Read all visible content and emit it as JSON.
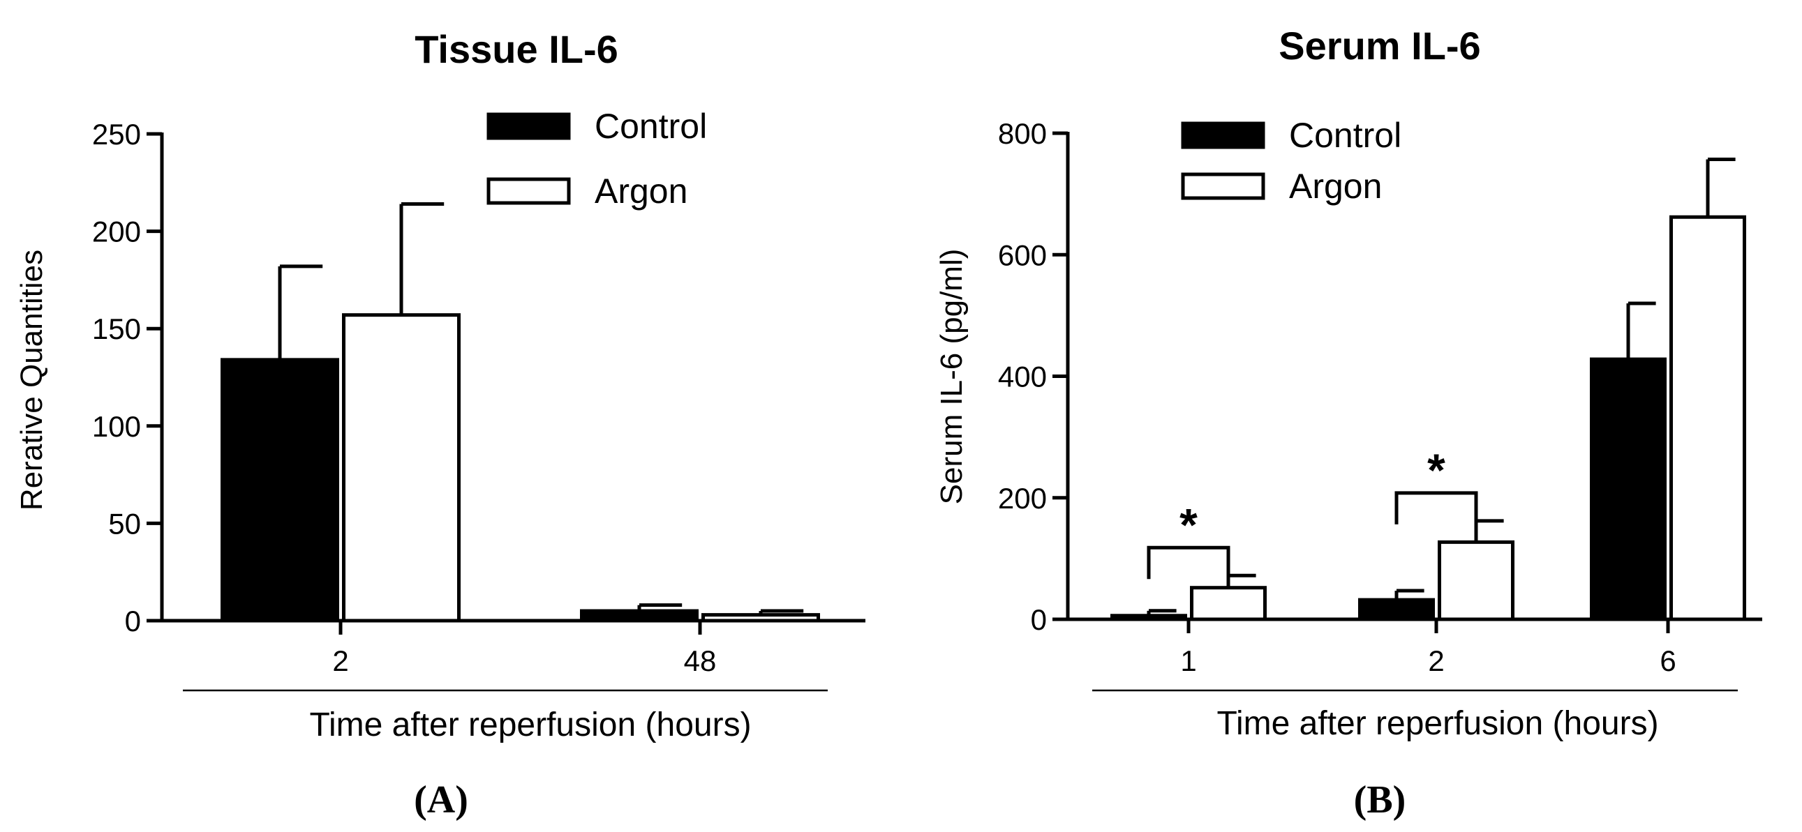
{
  "chart_data": [
    {
      "panel_label": "(A)",
      "type": "bar",
      "title": "Tissue IL-6",
      "ylabel": "Rerative Quantities",
      "xlabel": "Time after reperfusion (hours)",
      "categories": [
        "2",
        "48"
      ],
      "ylim": [
        0,
        250
      ],
      "yticks": [
        0,
        50,
        100,
        150,
        200,
        250
      ],
      "legend": {
        "placement": "top-right",
        "entries": [
          "Control",
          "Argon"
        ]
      },
      "series": [
        {
          "name": "Control",
          "color": "#000000",
          "values": [
            134,
            5
          ],
          "error": [
            48,
            3
          ]
        },
        {
          "name": "Argon",
          "color": "#ffffff",
          "values": [
            157,
            3
          ],
          "error": [
            57,
            2
          ]
        }
      ],
      "grid": false
    },
    {
      "panel_label": "(B)",
      "type": "bar",
      "title": "Serum IL-6",
      "ylabel": "Serum IL-6 (pg/ml)",
      "xlabel": "Time after reperfusion (hours)",
      "categories": [
        "1",
        "2",
        "6"
      ],
      "ylim": [
        0,
        800
      ],
      "yticks": [
        0,
        200,
        400,
        600,
        800
      ],
      "legend": {
        "placement": "top-left",
        "entries": [
          "Control",
          "Argon"
        ]
      },
      "series": [
        {
          "name": "Control",
          "color": "#000000",
          "values": [
            6,
            32,
            428
          ],
          "error": [
            8,
            15,
            92
          ]
        },
        {
          "name": "Argon",
          "color": "#ffffff",
          "values": [
            52,
            127,
            662
          ],
          "error": [
            20,
            35,
            95
          ]
        }
      ],
      "annotations": [
        {
          "text": "*",
          "category_index": 0
        },
        {
          "text": "*",
          "category_index": 1
        }
      ],
      "grid": false
    }
  ]
}
